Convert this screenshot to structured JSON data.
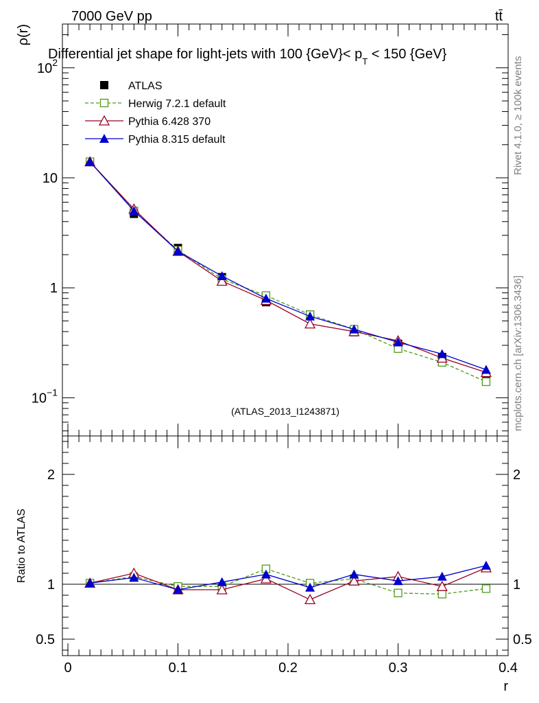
{
  "header": {
    "energy": "7000 GeV pp",
    "process": "tt̄",
    "title_prefix": "Differential jet shape for light-jets with 100 {GeV}< p",
    "title_sub": "T",
    "title_suffix": " < 150 {GeV}",
    "watermark": "(ATLAS_2013_I1243871)"
  },
  "side_labels": {
    "rivet": "Rivet 4.1.0, ≥ 100k events",
    "mcplots": "mcplots.cern.ch [arXiv:1306.3436]"
  },
  "colors": {
    "atlas": "#000000",
    "herwig": "#4c9a1a",
    "pythia6": "#990020",
    "pythia8": "#0000cc",
    "watermark": "#a0a0a0"
  },
  "chart_data": [
    {
      "type": "line",
      "panel": "main",
      "yscale": "log",
      "ylabel": "ρ(r)",
      "ylim": [
        0.045,
        250
      ],
      "xlim": [
        -0.005,
        0.4
      ],
      "y_ticks": [
        {
          "value": 0.1,
          "base": "10",
          "exp": "−1"
        },
        {
          "value": 1,
          "base": "1",
          "exp": ""
        },
        {
          "value": 10,
          "base": "10",
          "exp": ""
        },
        {
          "value": 100,
          "base": "10",
          "exp": "2"
        }
      ],
      "x": [
        0.02,
        0.06,
        0.1,
        0.14,
        0.18,
        0.22,
        0.26,
        0.3,
        0.34,
        0.38
      ],
      "series": [
        {
          "name": "ATLAS",
          "key": "atlas",
          "marker": "square-filled",
          "line": "none",
          "values": [
            14.0,
            4.7,
            2.3,
            1.25,
            0.74,
            0.57,
            0.395,
            0.31,
            0.235,
            0.145
          ]
        },
        {
          "name": "Herwig 7.2.1 default",
          "key": "herwig",
          "marker": "square-open",
          "line": "dashed",
          "values": [
            14.0,
            5.0,
            2.2,
            1.2,
            0.85,
            0.57,
            0.42,
            0.28,
            0.21,
            0.14
          ]
        },
        {
          "name": "Pythia 6.428 370",
          "key": "pythia6",
          "marker": "triangle-open",
          "line": "solid",
          "values": [
            14.0,
            5.2,
            2.15,
            1.15,
            0.77,
            0.47,
            0.4,
            0.33,
            0.23,
            0.17
          ]
        },
        {
          "name": "Pythia 8.315 default",
          "key": "pythia8",
          "marker": "triangle-filled",
          "line": "solid",
          "values": [
            14.0,
            5.0,
            2.15,
            1.28,
            0.8,
            0.55,
            0.42,
            0.32,
            0.25,
            0.18
          ]
        }
      ]
    },
    {
      "type": "line",
      "panel": "ratio",
      "ylabel": "Ratio to ATLAS",
      "xlabel": "r",
      "ylim": [
        0.35,
        2.35
      ],
      "xlim": [
        -0.005,
        0.4
      ],
      "y_ticks": [
        0.5,
        1,
        2
      ],
      "y_tick_labels": [
        "0.5",
        "1",
        "2"
      ],
      "x_ticks": [
        0,
        0.1,
        0.2,
        0.3,
        0.4
      ],
      "x_tick_labels": [
        "0",
        "0.1",
        "0.2",
        "0.3",
        "0.4"
      ],
      "x": [
        0.02,
        0.06,
        0.1,
        0.14,
        0.18,
        0.22,
        0.26,
        0.3,
        0.34,
        0.38
      ],
      "series": [
        {
          "name": "Herwig 7.2.1 default",
          "key": "herwig",
          "marker": "square-open",
          "line": "dashed",
          "values": [
            1.01,
            1.07,
            0.98,
            0.98,
            1.14,
            1.01,
            1.05,
            0.92,
            0.91,
            0.96
          ]
        },
        {
          "name": "Pythia 6.428 370",
          "key": "pythia6",
          "marker": "triangle-open",
          "line": "solid",
          "values": [
            1.01,
            1.1,
            0.95,
            0.95,
            1.05,
            0.86,
            1.03,
            1.07,
            0.98,
            1.15
          ]
        },
        {
          "name": "Pythia 8.315 default",
          "key": "pythia8",
          "marker": "triangle-filled",
          "line": "solid",
          "values": [
            1.01,
            1.06,
            0.95,
            1.02,
            1.09,
            0.97,
            1.09,
            1.03,
            1.07,
            1.17
          ]
        }
      ]
    }
  ]
}
